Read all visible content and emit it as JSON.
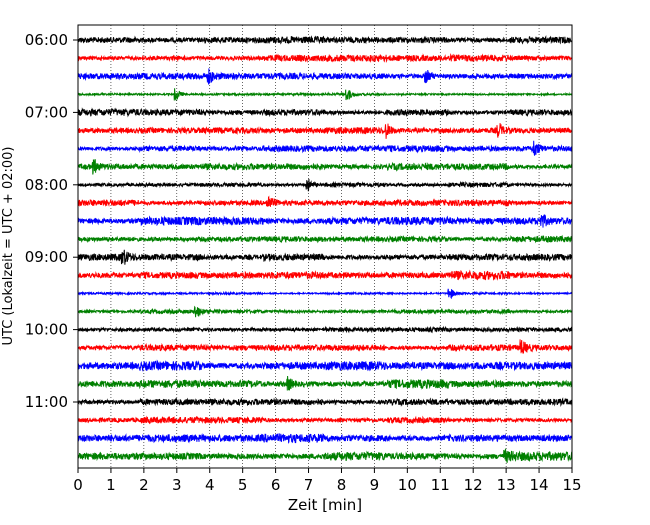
{
  "chart_data": {
    "type": "line",
    "title": "",
    "xlabel": "Zeit  [min]",
    "ylabel": "UTC (Lokalzeit = UTC + 02:00)",
    "xlim": [
      0,
      15
    ],
    "x_ticks": [
      0,
      1,
      2,
      3,
      4,
      5,
      6,
      7,
      8,
      9,
      10,
      11,
      12,
      13,
      14,
      15
    ],
    "x_tick_labels": [
      "0",
      "1",
      "2",
      "3",
      "4",
      "5",
      "6",
      "7",
      "8",
      "9",
      "10",
      "11",
      "12",
      "13",
      "14",
      "15"
    ],
    "y_ticks": [
      {
        "trace_index": 0,
        "label": "06:00"
      },
      {
        "trace_index": 4,
        "label": "07:00"
      },
      {
        "trace_index": 8,
        "label": "08:00"
      },
      {
        "trace_index": 12,
        "label": "09:00"
      },
      {
        "trace_index": 16,
        "label": "10:00"
      },
      {
        "trace_index": 20,
        "label": "11:00"
      }
    ],
    "grid": {
      "vertical": true,
      "horizontal": false
    },
    "trace_colors": [
      "#000000",
      "#ff0000",
      "#0000ff",
      "#008000"
    ],
    "trace_start_times": [
      "06:00",
      "06:15",
      "06:30",
      "06:45",
      "07:00",
      "07:15",
      "07:30",
      "07:45",
      "08:00",
      "08:15",
      "08:30",
      "08:45",
      "09:00",
      "09:15",
      "09:30",
      "09:45",
      "10:00",
      "10:15",
      "10:30",
      "10:45",
      "11:00",
      "11:15",
      "11:30",
      "11:45"
    ],
    "trace_amplitudes": [
      3,
      3,
      3,
      1,
      3,
      3,
      3,
      3,
      2,
      3,
      4,
      3,
      3,
      4,
      1,
      2,
      2,
      3,
      4,
      4,
      3,
      3,
      4,
      4
    ],
    "events": [
      {
        "trace": 2,
        "x": 4.0
      },
      {
        "trace": 2,
        "x": 10.6
      },
      {
        "trace": 3,
        "x": 3.0
      },
      {
        "trace": 3,
        "x": 8.2
      },
      {
        "trace": 5,
        "x": 9.4
      },
      {
        "trace": 5,
        "x": 12.8
      },
      {
        "trace": 6,
        "x": 13.9
      },
      {
        "trace": 7,
        "x": 0.5
      },
      {
        "trace": 8,
        "x": 7.0
      },
      {
        "trace": 9,
        "x": 5.8
      },
      {
        "trace": 10,
        "x": 14.1
      },
      {
        "trace": 12,
        "x": 1.4
      },
      {
        "trace": 14,
        "x": 11.3
      },
      {
        "trace": 15,
        "x": 3.6
      },
      {
        "trace": 17,
        "x": 13.5
      },
      {
        "trace": 19,
        "x": 6.4
      },
      {
        "trace": 23,
        "x": 13.0
      }
    ]
  }
}
